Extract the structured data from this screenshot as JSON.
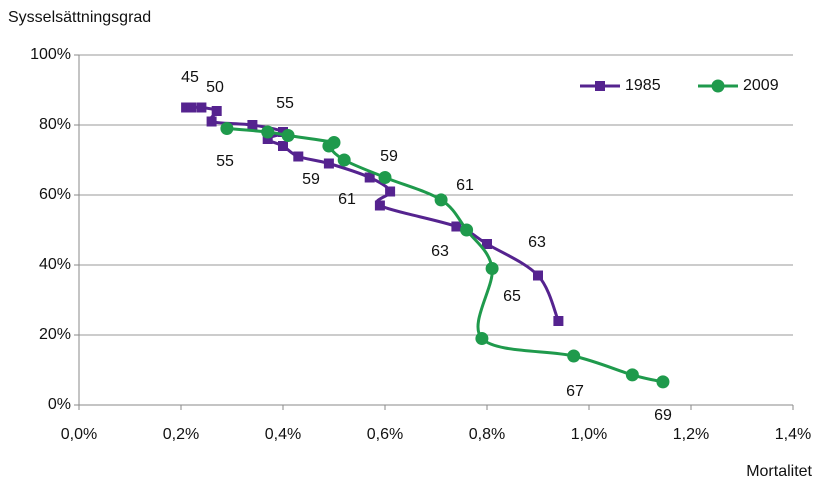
{
  "chart_data": {
    "type": "line",
    "y_label": "Sysselsättningsgrad",
    "x_label": "Mortalitet",
    "xlim": [
      0,
      1.4
    ],
    "xticks": [
      {
        "value": 0,
        "label": "0,0%"
      },
      {
        "value": 0.2,
        "label": "0,2%"
      },
      {
        "value": 0.4,
        "label": "0,4%"
      },
      {
        "value": 0.6,
        "label": "0,6%"
      },
      {
        "value": 0.8,
        "label": "0,8%"
      },
      {
        "value": 1.0,
        "label": "1,0%"
      },
      {
        "value": 1.2,
        "label": "1,2%"
      },
      {
        "value": 1.4,
        "label": "1,4%"
      }
    ],
    "ylim": [
      0,
      100
    ],
    "yticks": [
      {
        "value": 0,
        "label": "0%"
      },
      {
        "value": 20,
        "label": "20%"
      },
      {
        "value": 40,
        "label": "40%"
      },
      {
        "value": 60,
        "label": "60%"
      },
      {
        "value": 80,
        "label": "80%"
      },
      {
        "value": 100,
        "label": "100%"
      }
    ],
    "grid": true,
    "smooth": true,
    "legend": "upper right",
    "series": [
      {
        "name": "1985",
        "color": "#55238f",
        "marker": "square",
        "x": [
          0.21,
          0.22,
          0.24,
          0.27,
          0.26,
          0.34,
          0.4,
          0.37,
          0.4,
          0.43,
          0.49,
          0.57,
          0.61,
          0.59,
          0.74,
          0.8,
          0.9,
          0.94
        ],
        "values": [
          85,
          85,
          85,
          84,
          81,
          80,
          78,
          76,
          74,
          71,
          69,
          65,
          61,
          57,
          51,
          46,
          37,
          24
        ]
      },
      {
        "name": "2009",
        "color": "#1f9a4c",
        "marker": "circle",
        "x": [
          0.29,
          0.37,
          0.41,
          0.5,
          0.49,
          0.52,
          0.6,
          0.71,
          0.76,
          0.81,
          0.79,
          0.97,
          1.085,
          1.145
        ],
        "values": [
          79,
          78,
          77,
          75,
          74,
          70,
          65,
          58.6,
          50,
          39,
          19,
          14,
          8.6,
          6.6
        ]
      }
    ],
    "annotations": [
      "45",
      "50",
      "55",
      "55",
      "59",
      "59",
      "61",
      "61",
      "63",
      "63",
      "65",
      "67",
      "69"
    ]
  }
}
